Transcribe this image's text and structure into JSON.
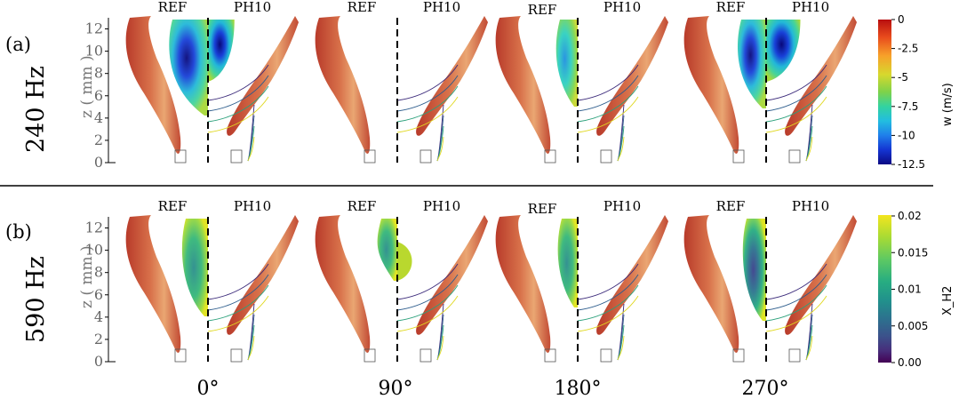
{
  "rows": [
    {
      "panel": "(a)",
      "frequency": "240 Hz"
    },
    {
      "panel": "(b)",
      "frequency": "590 Hz"
    }
  ],
  "column_labels": {
    "left": "REF",
    "right": "PH10"
  },
  "phases": [
    "0°",
    "90°",
    "180°",
    "270°"
  ],
  "z_axis": {
    "label": "z ( mm )",
    "ticks": [
      "0",
      "2",
      "4",
      "6",
      "8",
      "10",
      "12"
    ]
  },
  "colorbar_w": {
    "label": "w (m/s)",
    "ticks": [
      "0",
      "-2.5",
      "-5",
      "-7.5",
      "-10",
      "-12.5"
    ],
    "colormap": [
      "#c2140f",
      "#ef5a1e",
      "#f7a92b",
      "#d6d62e",
      "#8fd64a",
      "#3ed39a",
      "#22c1d8",
      "#1e7ee8",
      "#1435d6",
      "#0a0a8c"
    ]
  },
  "colorbar_h2": {
    "label": "X_H2",
    "ticks": [
      "0.02",
      "0.015",
      "0.01",
      "0.005",
      "0.00"
    ],
    "colormap": [
      "#f3e51e",
      "#a8db34",
      "#5ec962",
      "#27ad81",
      "#21918c",
      "#2c728e",
      "#3b528b",
      "#472d7b",
      "#440154"
    ]
  },
  "flame_colors": [
    "#c9523a",
    "#d9784c",
    "#e8a06a",
    "#b43a2a"
  ]
}
